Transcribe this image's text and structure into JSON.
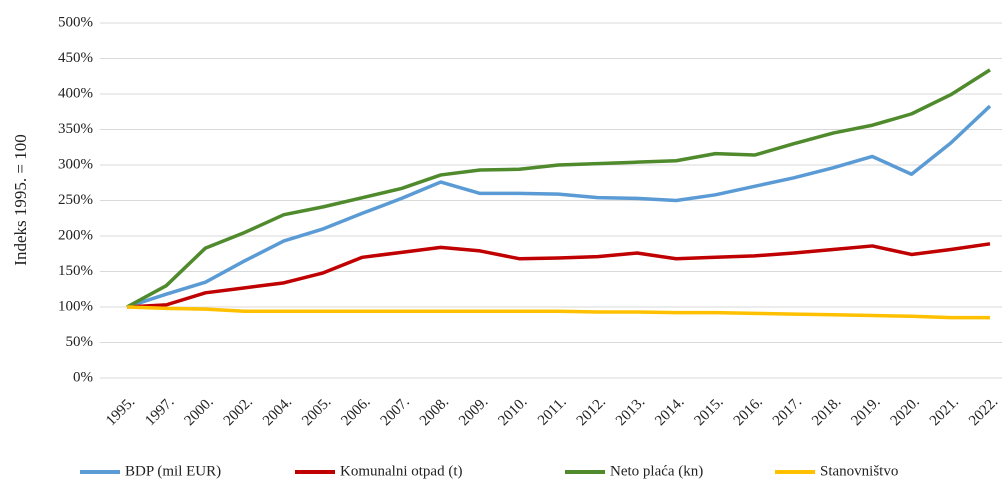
{
  "chart_data": {
    "type": "line",
    "y_label": "Indeks 1995. = 100",
    "categories": [
      "1995.",
      "1997.",
      "2000.",
      "2002.",
      "2004.",
      "2005.",
      "2006.",
      "2007.",
      "2008.",
      "2009.",
      "2010.",
      "2011.",
      "2012.",
      "2013.",
      "2014.",
      "2015.",
      "2016.",
      "2017.",
      "2018.",
      "2019.",
      "2020.",
      "2021.",
      "2022."
    ],
    "series": [
      {
        "name": "BDP (mil EUR)",
        "color": "#5b9bd5",
        "values": [
          100,
          118,
          135,
          165,
          193,
          210,
          232,
          253,
          276,
          260,
          260,
          259,
          254,
          253,
          250,
          258,
          270,
          282,
          296,
          312,
          287,
          331,
          383
        ]
      },
      {
        "name": "Komunalni otpad (t)",
        "color": "#c00000",
        "values": [
          100,
          103,
          120,
          127,
          134,
          148,
          170,
          177,
          184,
          179,
          168,
          169,
          171,
          176,
          168,
          170,
          172,
          176,
          181,
          186,
          174,
          181,
          189
        ]
      },
      {
        "name": "Neto plaća (kn)",
        "color": "#4f8a2d",
        "values": [
          100,
          130,
          183,
          205,
          230,
          241,
          254,
          267,
          286,
          293,
          294,
          300,
          302,
          304,
          306,
          316,
          314,
          330,
          345,
          356,
          372,
          399,
          434
        ]
      },
      {
        "name": "Stanovništvo",
        "color": "#ffc000",
        "values": [
          100,
          98,
          97,
          94,
          94,
          94,
          94,
          94,
          94,
          94,
          94,
          94,
          93,
          93,
          92,
          92,
          91,
          90,
          89,
          88,
          87,
          85,
          85
        ]
      }
    ],
    "ylim": [
      0,
      500
    ],
    "yticks": [
      {
        "value": 0,
        "label": "0%"
      },
      {
        "value": 50,
        "label": "50%"
      },
      {
        "value": 100,
        "label": "100%"
      },
      {
        "value": 150,
        "label": "150%"
      },
      {
        "value": 200,
        "label": "200%"
      },
      {
        "value": 250,
        "label": "250%"
      },
      {
        "value": 300,
        "label": "300%"
      },
      {
        "value": 350,
        "label": "350%"
      },
      {
        "value": 400,
        "label": "400%"
      },
      {
        "value": 450,
        "label": "450%"
      },
      {
        "value": 500,
        "label": "500%"
      }
    ],
    "grid": true,
    "legend": "bottom"
  }
}
